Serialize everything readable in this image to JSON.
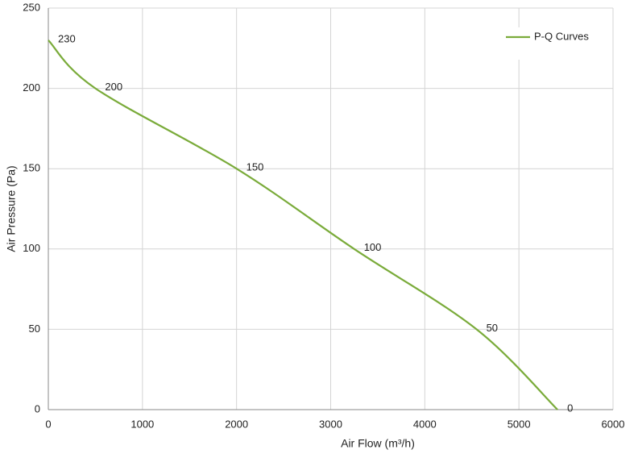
{
  "chart_data": {
    "type": "line",
    "x_label": "Air Flow  (m³/h)",
    "y_label": "Air Pressure  (Pa)",
    "x": [
      0,
      500,
      2000,
      3250,
      4550,
      5410
    ],
    "series": [
      {
        "name": "P-Q Curves",
        "color": "#7aab3a",
        "values": [
          230,
          200,
          150,
          100,
          50,
          0
        ]
      }
    ],
    "xlim": [
      0,
      6000
    ],
    "xticks": [
      0,
      1000,
      2000,
      3000,
      4000,
      5000,
      6000
    ],
    "ylim": [
      0,
      250
    ],
    "yticks": [
      0,
      50,
      100,
      150,
      200,
      250
    ],
    "grid": true,
    "legend": "upper right",
    "data_labels": true
  }
}
